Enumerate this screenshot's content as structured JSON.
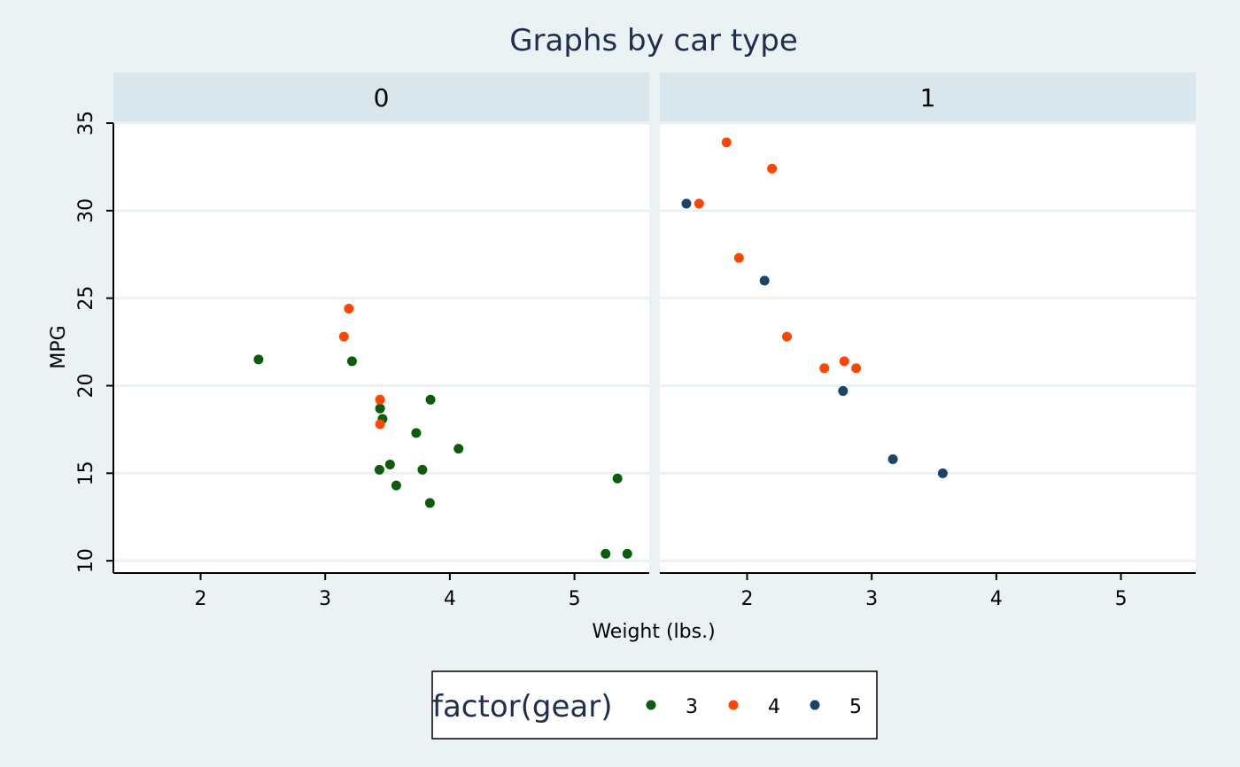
{
  "chart_data": {
    "type": "scatter",
    "title": "Graphs by car type",
    "xlabel": "Weight (lbs.)",
    "ylabel": "MPG",
    "xlim": [
      1.3,
      5.6
    ],
    "ylim": [
      9.3,
      35.0
    ],
    "xticks": [
      2,
      3,
      4,
      5
    ],
    "yticks": [
      10,
      15,
      20,
      25,
      30,
      35
    ],
    "grid": true,
    "legend_position": "bottom",
    "legend": {
      "title": "factor(gear)",
      "entries": [
        {
          "label": "3",
          "color": "#0b5d0b"
        },
        {
          "label": "4",
          "color": "#ff4500"
        },
        {
          "label": "5",
          "color": "#1a4369"
        }
      ]
    },
    "facets": [
      {
        "label": "0",
        "series": [
          {
            "group": "3",
            "points": [
              [
                2.465,
                21.5
              ],
              [
                3.215,
                21.4
              ],
              [
                3.44,
                18.7
              ],
              [
                3.46,
                18.1
              ],
              [
                3.57,
                14.3
              ],
              [
                3.73,
                17.3
              ],
              [
                3.78,
                15.2
              ],
              [
                3.84,
                13.3
              ],
              [
                3.845,
                19.2
              ],
              [
                4.07,
                16.4
              ],
              [
                3.435,
                15.2
              ],
              [
                3.52,
                15.5
              ],
              [
                5.25,
                10.4
              ],
              [
                5.424,
                10.4
              ],
              [
                5.345,
                14.7
              ]
            ]
          },
          {
            "group": "4",
            "points": [
              [
                3.19,
                24.4
              ],
              [
                3.15,
                22.8
              ],
              [
                3.44,
                19.2
              ],
              [
                3.44,
                17.8
              ]
            ]
          }
        ]
      },
      {
        "label": "1",
        "series": [
          {
            "group": "4",
            "points": [
              [
                2.62,
                21.0
              ],
              [
                2.875,
                21.0
              ],
              [
                2.32,
                22.8
              ],
              [
                2.2,
                32.4
              ],
              [
                1.615,
                30.4
              ],
              [
                1.835,
                33.9
              ],
              [
                1.935,
                27.3
              ],
              [
                2.78,
                21.4
              ]
            ]
          },
          {
            "group": "5",
            "points": [
              [
                2.14,
                26.0
              ],
              [
                1.513,
                30.4
              ],
              [
                3.17,
                15.8
              ],
              [
                2.77,
                19.7
              ],
              [
                3.57,
                15.0
              ]
            ]
          }
        ]
      }
    ]
  }
}
